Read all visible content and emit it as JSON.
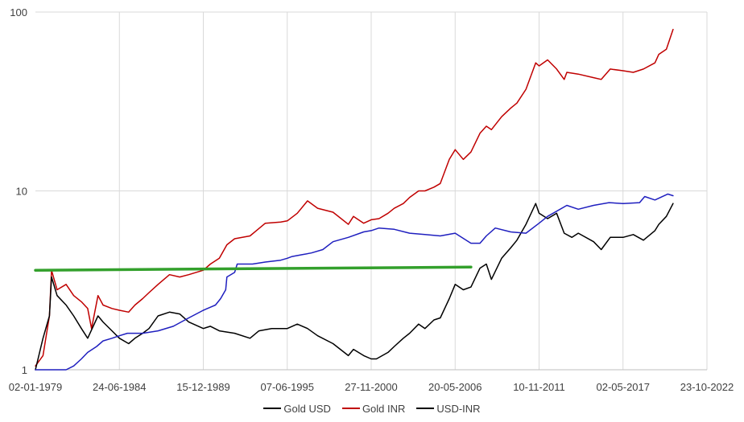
{
  "chart_data": {
    "type": "line",
    "title": "",
    "xlabel": "",
    "ylabel": "",
    "y_scale": "log",
    "ylim": [
      1,
      100
    ],
    "xlim": [
      "1979-01-02",
      "2022-10-23"
    ],
    "y_ticks": [
      1,
      10,
      100
    ],
    "y_tick_labels": [
      "1",
      "10",
      "100"
    ],
    "x_ticks": [
      "1979-01-02",
      "1984-06-24",
      "1989-12-15",
      "1995-06-07",
      "2000-11-27",
      "2006-05-20",
      "2011-11-10",
      "2017-05-02",
      "2022-10-23"
    ],
    "x_tick_labels": [
      "02-01-1979",
      "24-06-1984",
      "15-12-1989",
      "07-06-1995",
      "27-11-2000",
      "20-05-2006",
      "10-11-2011",
      "02-05-2017",
      "23-10-2022"
    ],
    "grid": {
      "vertical": true,
      "horizontal": true
    },
    "legend_position": "bottom",
    "legend": [
      {
        "label": "Gold USD",
        "color": "#000000"
      },
      {
        "label": "Gold INR",
        "color": "#c00000"
      },
      {
        "label": "USD-INR",
        "color": "#000000"
      }
    ],
    "series": [
      {
        "name": "Gold INR",
        "color": "#c00000",
        "x": [
          "1979-01-02",
          "1979-07-01",
          "1979-12-01",
          "1980-01-21",
          "1980-06-01",
          "1981-01-01",
          "1981-07-01",
          "1982-01-01",
          "1982-06-01",
          "1982-09-01",
          "1983-02-01",
          "1983-06-01",
          "1984-01-01",
          "1984-06-24",
          "1985-02-01",
          "1985-07-01",
          "1986-01-01",
          "1986-06-01",
          "1987-01-01",
          "1987-10-01",
          "1988-06-01",
          "1989-01-01",
          "1989-12-15",
          "1990-06-01",
          "1991-01-01",
          "1991-07-01",
          "1992-01-01",
          "1993-01-01",
          "1993-06-01",
          "1994-01-01",
          "1995-01-01",
          "1995-06-07",
          "1996-02-01",
          "1996-10-01",
          "1997-06-01",
          "1998-06-01",
          "1999-06-01",
          "1999-10-01",
          "2000-06-01",
          "2000-11-27",
          "2001-06-01",
          "2002-01-01",
          "2002-06-01",
          "2003-01-01",
          "2003-06-01",
          "2004-01-01",
          "2004-06-01",
          "2005-01-01",
          "2005-06-01",
          "2006-01-01",
          "2006-05-20",
          "2006-12-01",
          "2007-06-01",
          "2008-01-01",
          "2008-06-01",
          "2008-10-01",
          "2009-06-01",
          "2010-01-01",
          "2010-06-01",
          "2011-01-01",
          "2011-08-22",
          "2011-11-10",
          "2012-06-01",
          "2013-01-01",
          "2013-06-30",
          "2013-09-01",
          "2014-06-01",
          "2015-06-01",
          "2015-12-01",
          "2016-07-01",
          "2017-05-02",
          "2018-01-01",
          "2018-09-01",
          "2019-06-01",
          "2019-09-01",
          "2020-03-01",
          "2020-08-07"
        ],
        "values": [
          1.05,
          1.2,
          2.0,
          3.6,
          2.8,
          3.0,
          2.6,
          2.4,
          2.2,
          1.7,
          2.6,
          2.3,
          2.2,
          2.15,
          2.1,
          2.3,
          2.5,
          2.7,
          3.0,
          3.4,
          3.3,
          3.4,
          3.6,
          3.9,
          4.2,
          5.0,
          5.4,
          5.6,
          6.0,
          6.6,
          6.7,
          6.8,
          7.5,
          8.8,
          8.0,
          7.6,
          6.5,
          7.2,
          6.6,
          6.9,
          7.0,
          7.5,
          8.0,
          8.5,
          9.2,
          10.0,
          10.0,
          10.5,
          11.0,
          15.0,
          17.0,
          15.0,
          16.5,
          21.0,
          23.0,
          22.0,
          26.0,
          29.0,
          31.0,
          37.0,
          52.0,
          50.0,
          54.0,
          48.0,
          42.0,
          46.0,
          45.0,
          43.0,
          42.0,
          48.0,
          47.0,
          46.0,
          48.0,
          52.0,
          58.0,
          62.0,
          80.0
        ]
      },
      {
        "name": "Gold USD",
        "color": "#000000",
        "x": [
          "1979-01-02",
          "1979-07-01",
          "1979-12-01",
          "1980-01-21",
          "1980-06-01",
          "1981-01-01",
          "1981-07-01",
          "1982-01-01",
          "1982-06-01",
          "1983-02-01",
          "1983-06-01",
          "1984-01-01",
          "1984-06-24",
          "1985-02-01",
          "1985-07-01",
          "1986-01-01",
          "1986-06-01",
          "1987-01-01",
          "1987-10-01",
          "1988-06-01",
          "1989-01-01",
          "1989-12-15",
          "1990-06-01",
          "1991-01-01",
          "1992-01-01",
          "1993-01-01",
          "1993-08-01",
          "1994-06-01",
          "1995-06-07",
          "1996-02-01",
          "1996-10-01",
          "1997-06-01",
          "1998-06-01",
          "1999-06-01",
          "1999-10-01",
          "2000-06-01",
          "2000-11-27",
          "2001-04-01",
          "2002-01-01",
          "2002-06-01",
          "2003-01-01",
          "2003-06-01",
          "2004-01-01",
          "2004-06-01",
          "2005-01-01",
          "2005-06-01",
          "2006-01-01",
          "2006-05-20",
          "2006-12-01",
          "2007-06-01",
          "2008-01-01",
          "2008-06-01",
          "2008-10-01",
          "2009-06-01",
          "2010-01-01",
          "2010-06-01",
          "2011-01-01",
          "2011-08-22",
          "2011-11-10",
          "2012-06-01",
          "2013-01-01",
          "2013-06-30",
          "2014-01-01",
          "2014-06-01",
          "2015-06-01",
          "2015-12-01",
          "2016-07-01",
          "2017-05-02",
          "2018-01-01",
          "2018-09-01",
          "2019-06-01",
          "2019-09-01",
          "2020-03-01",
          "2020-08-07"
        ],
        "values": [
          1.0,
          1.5,
          2.0,
          3.3,
          2.6,
          2.3,
          2.0,
          1.7,
          1.5,
          2.0,
          1.85,
          1.65,
          1.5,
          1.4,
          1.5,
          1.6,
          1.7,
          2.0,
          2.1,
          2.05,
          1.85,
          1.7,
          1.75,
          1.65,
          1.6,
          1.5,
          1.65,
          1.7,
          1.7,
          1.8,
          1.7,
          1.55,
          1.4,
          1.2,
          1.3,
          1.2,
          1.15,
          1.15,
          1.25,
          1.35,
          1.5,
          1.6,
          1.8,
          1.7,
          1.9,
          1.95,
          2.5,
          3.0,
          2.8,
          2.9,
          3.7,
          3.9,
          3.2,
          4.2,
          4.8,
          5.3,
          6.5,
          8.5,
          7.5,
          7.0,
          7.5,
          5.8,
          5.5,
          5.8,
          5.2,
          4.7,
          5.5,
          5.5,
          5.7,
          5.3,
          6.0,
          6.5,
          7.2,
          8.5
        ]
      },
      {
        "name": "",
        "color": "#1f1fbf",
        "x": [
          "1979-01-02",
          "1981-01-01",
          "1981-07-01",
          "1982-01-01",
          "1982-06-01",
          "1983-01-01",
          "1983-06-01",
          "1984-01-01",
          "1984-06-24",
          "1985-01-01",
          "1986-01-01",
          "1987-01-01",
          "1988-01-01",
          "1989-01-01",
          "1989-12-15",
          "1990-10-01",
          "1991-02-01",
          "1991-06-01",
          "1991-07-01",
          "1992-01-01",
          "1992-03-01",
          "1993-03-01",
          "1994-01-01",
          "1995-01-01",
          "1995-06-07",
          "1995-10-01",
          "1996-06-01",
          "1997-01-01",
          "1997-10-01",
          "1998-06-01",
          "1999-06-01",
          "2000-06-01",
          "2000-11-27",
          "2001-06-01",
          "2002-06-01",
          "2003-06-01",
          "2004-06-01",
          "2005-06-01",
          "2006-05-20",
          "2007-06-01",
          "2008-01-01",
          "2008-06-01",
          "2009-01-01",
          "2010-01-01",
          "2011-01-01",
          "2011-11-10",
          "2012-06-01",
          "2013-09-01",
          "2014-06-01",
          "2015-06-01",
          "2016-06-01",
          "2017-05-02",
          "2018-06-01",
          "2018-10-01",
          "2019-06-01",
          "2020-04-01",
          "2020-08-07"
        ],
        "values": [
          1.0,
          1.0,
          1.05,
          1.15,
          1.25,
          1.35,
          1.45,
          1.5,
          1.55,
          1.6,
          1.6,
          1.65,
          1.75,
          1.95,
          2.15,
          2.3,
          2.5,
          2.8,
          3.3,
          3.5,
          3.9,
          3.9,
          4.0,
          4.1,
          4.2,
          4.3,
          4.4,
          4.5,
          4.7,
          5.2,
          5.5,
          5.9,
          6.0,
          6.2,
          6.1,
          5.8,
          5.7,
          5.6,
          5.8,
          5.1,
          5.1,
          5.6,
          6.2,
          5.9,
          5.8,
          6.6,
          7.2,
          8.3,
          7.9,
          8.3,
          8.6,
          8.5,
          8.6,
          9.3,
          8.9,
          9.6,
          9.4
        ]
      },
      {
        "name": "",
        "color": "#33a02c",
        "x": [
          "1979-01-02",
          "2007-06-01"
        ],
        "values": [
          3.6,
          3.75
        ]
      }
    ]
  }
}
